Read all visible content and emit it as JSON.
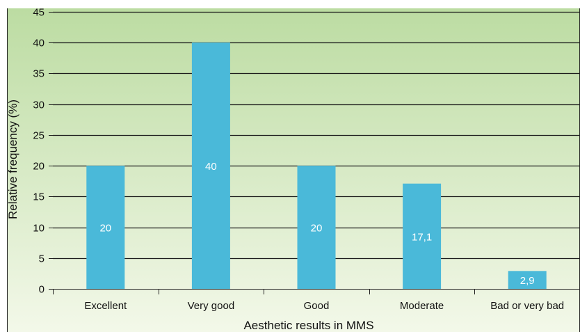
{
  "chart_data": {
    "type": "bar",
    "categories": [
      "Excellent",
      "Very good",
      "Good",
      "Moderate",
      "Bad or very bad"
    ],
    "values": [
      20,
      40,
      20,
      17.1,
      2.9
    ],
    "data_labels": [
      "20",
      "40",
      "20",
      "17,1",
      "2,9"
    ],
    "xlabel": "Aesthetic results in MMS",
    "ylabel": "Relative frequency (%)",
    "ylim": [
      0,
      45
    ],
    "yticks": [
      0,
      5,
      10,
      15,
      20,
      25,
      30,
      35,
      40,
      45
    ],
    "grid": true,
    "legend": "none",
    "colors": {
      "bar": "#4ab9d9",
      "background_top": "#bcdca2",
      "background_bottom": "#f3f8e9",
      "gridline": "#1a1a1a",
      "data_label": "#ffffff"
    }
  }
}
